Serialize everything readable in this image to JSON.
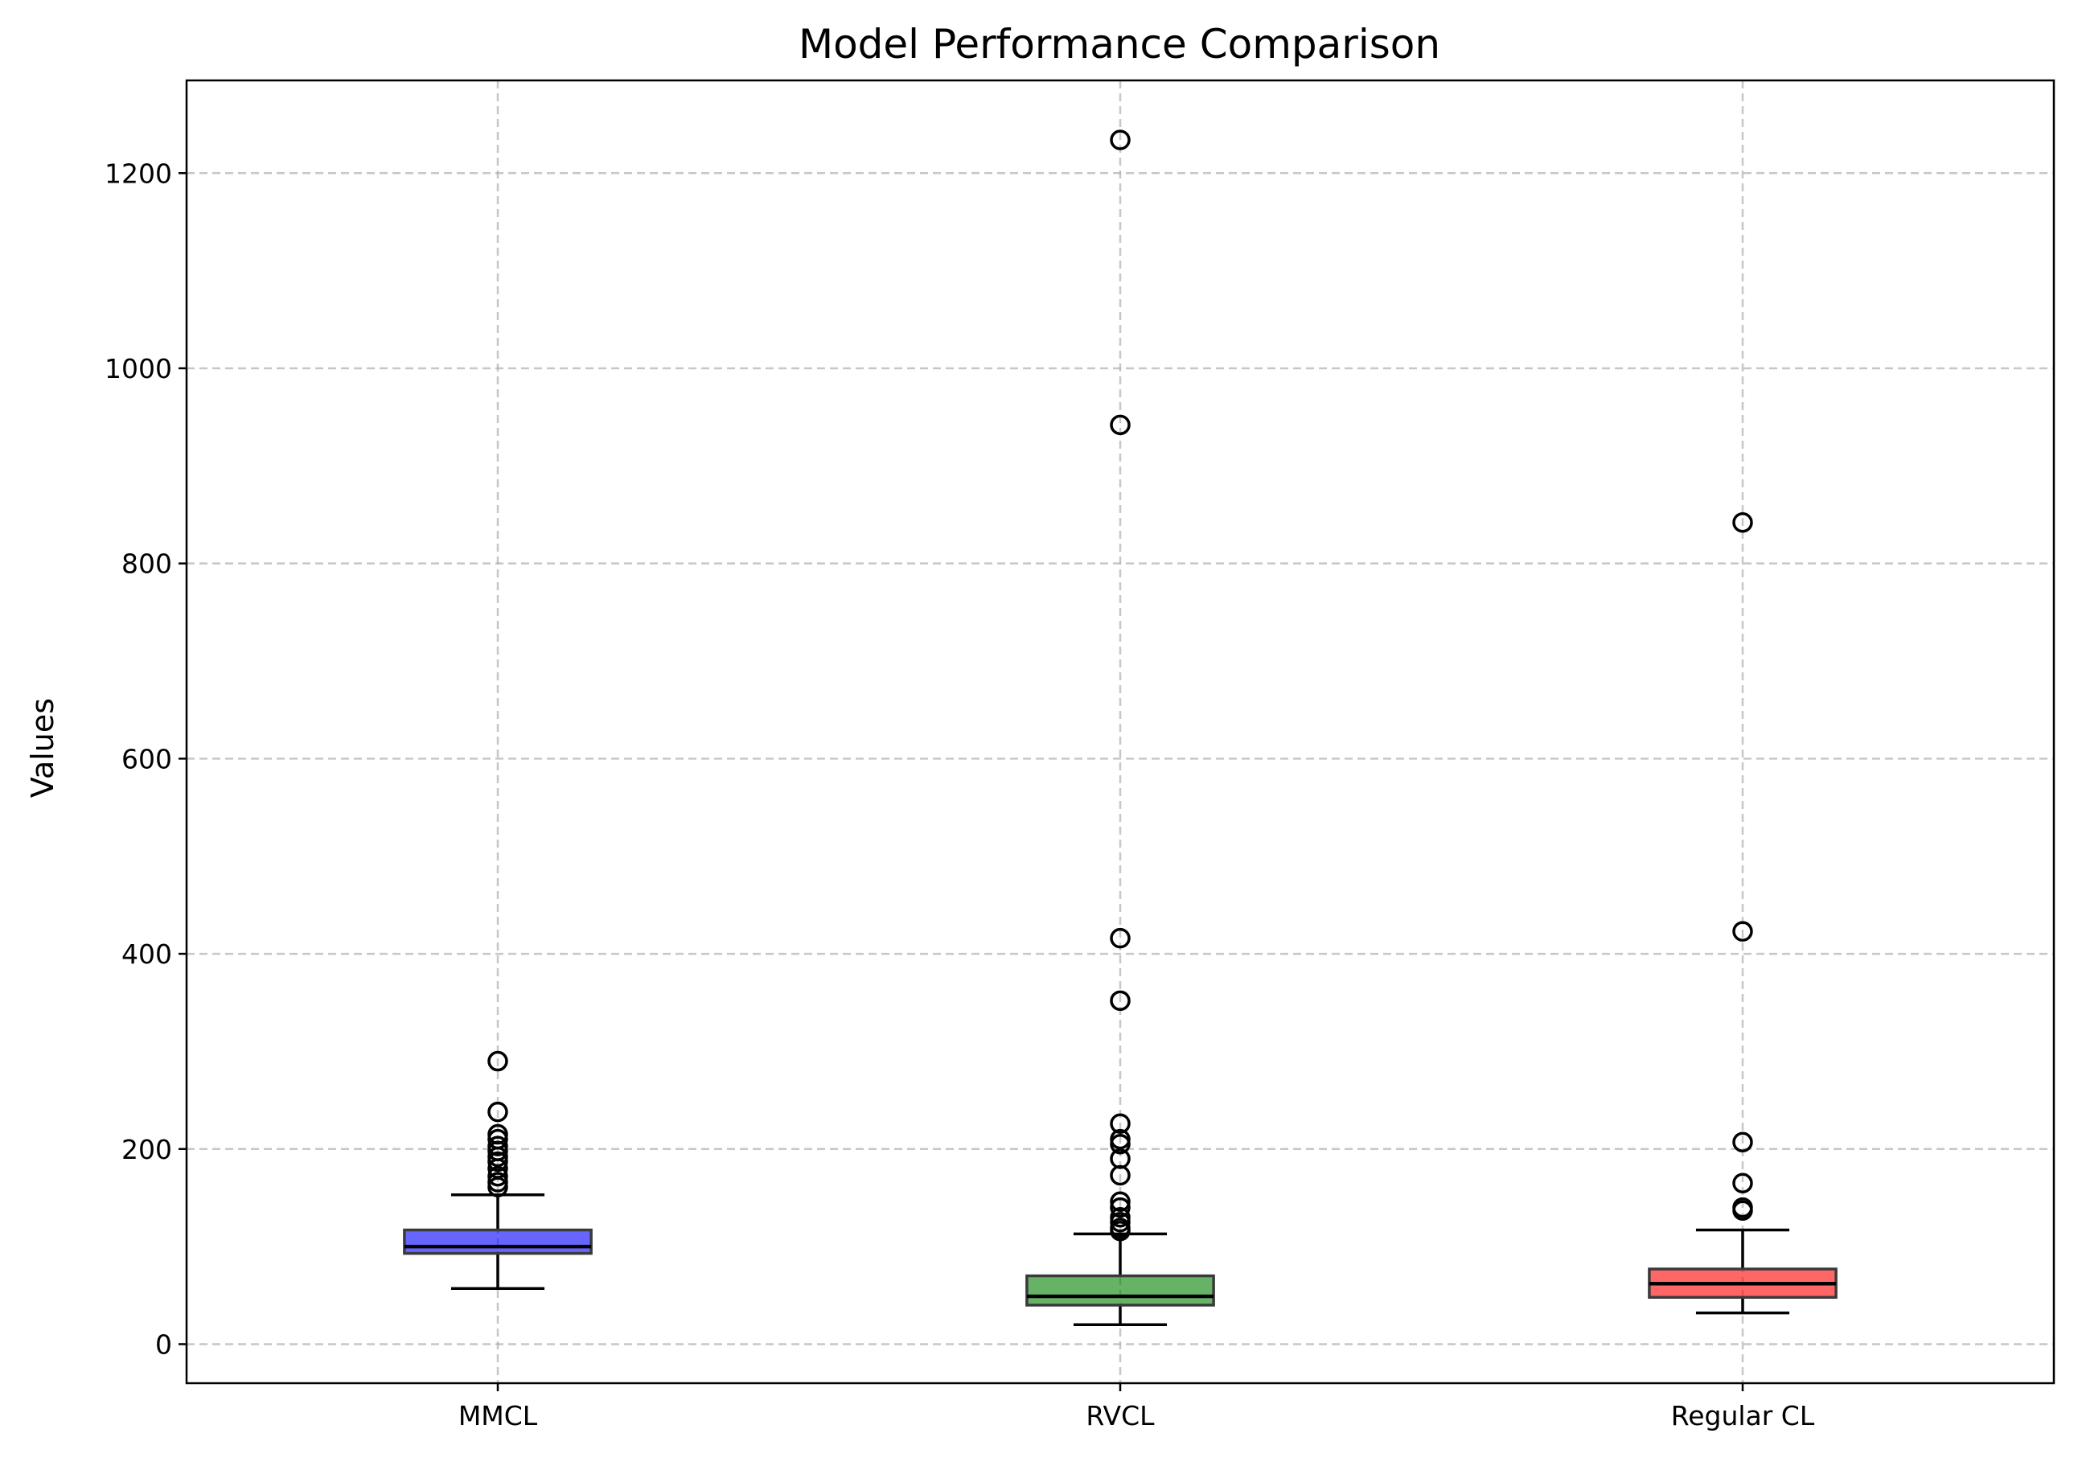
{
  "chart_data": {
    "type": "box",
    "title": "Model Performance Comparison",
    "xlabel": "",
    "ylabel": "Values",
    "ylim": [
      -40,
      1295
    ],
    "yticks": [
      0,
      200,
      400,
      600,
      800,
      1000,
      1200
    ],
    "grid": true,
    "categories": [
      "MMCL",
      "RVCL",
      "Regular CL"
    ],
    "series": [
      {
        "category": "MMCL",
        "color": "#0000ff",
        "whisker_low": 57,
        "q1": 93,
        "median": 100,
        "q3": 117,
        "whisker_high": 153,
        "outliers": [
          290,
          238,
          215,
          210,
          203,
          198,
          192,
          187,
          180,
          172,
          166,
          161
        ]
      },
      {
        "category": "RVCL",
        "color": "#008000",
        "whisker_low": 20,
        "q1": 40,
        "median": 49,
        "q3": 70,
        "whisker_high": 113,
        "outliers": [
          1234,
          942,
          416,
          352,
          226,
          210,
          205,
          190,
          173,
          146,
          140,
          130,
          125,
          119,
          116
        ]
      },
      {
        "category": "Regular CL",
        "color": "#ff0000",
        "whisker_low": 32,
        "q1": 48,
        "median": 62,
        "q3": 77,
        "whisker_high": 117,
        "outliers": [
          842,
          423,
          207,
          165,
          140,
          137
        ]
      }
    ]
  }
}
